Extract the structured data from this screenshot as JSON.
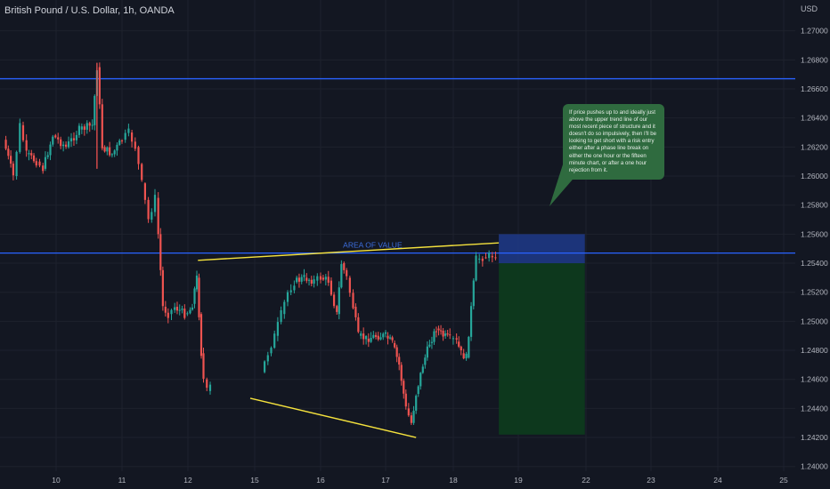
{
  "header": {
    "symbol_title": "British Pound / U.S. Dollar, 1h, OANDA",
    "currency": "USD"
  },
  "annotations": {
    "area_of_value": "AREA OF VALUE",
    "callout_text": "If price pushes up to and ideally just above the upper trend line of our most recent piece of structure and it doesn't do so impulsively, then I'll be looking to get short with a risk entry either after a phase line break on either the one hour or the fifteen minute chart, or after a one hour rejection from it."
  },
  "colors": {
    "background": "#131722",
    "grid": "#1e222d",
    "up_candle": "#26a69a",
    "down_candle": "#ef5350",
    "horizontal_line": "#2962ff",
    "trend_line": "#f5e23d",
    "stop_zone": "#1e3a8a",
    "target_zone": "#0d3a1e",
    "callout_bg": "#2f6b3f"
  },
  "chart_data": {
    "type": "candlestick",
    "title": "British Pound / U.S. Dollar, 1h, OANDA",
    "ylabel": "USD",
    "ylim": [
      1.2398,
      1.272
    ],
    "grid": true,
    "x_ticks": [
      "10",
      "11",
      "12",
      "15",
      "16",
      "17",
      "18",
      "19",
      "22",
      "23",
      "24",
      "25"
    ],
    "y_ticks": [
      "1.27000",
      "1.26800",
      "1.26600",
      "1.26400",
      "1.26200",
      "1.26000",
      "1.25800",
      "1.25600",
      "1.25400",
      "1.25200",
      "1.25000",
      "1.24800",
      "1.24600",
      "1.24400",
      "1.24200",
      "1.24000"
    ],
    "horizontal_levels": [
      1.2667,
      1.2547
    ],
    "area_of_value_level": 1.2547,
    "trend_lines": [
      {
        "x1": 12.45,
        "y1": 1.2542,
        "x2": 18.7,
        "y2": 1.2554
      },
      {
        "x1": 14.8,
        "y1": 1.2447,
        "x2": 17.45,
        "y2": 1.242
      }
    ],
    "position": {
      "side": "short",
      "x_start": 18.7,
      "x_end": 21.95,
      "entry": 1.254,
      "stop": 1.256,
      "target": 1.2422
    },
    "price_path": [
      {
        "x": 9.2,
        "close": 1.2625
      },
      {
        "x": 9.35,
        "close": 1.26
      },
      {
        "x": 9.45,
        "close": 1.2635
      },
      {
        "x": 9.55,
        "close": 1.2615
      },
      {
        "x": 9.7,
        "close": 1.261
      },
      {
        "x": 9.8,
        "close": 1.2605
      },
      {
        "x": 9.95,
        "close": 1.2628
      },
      {
        "x": 10.15,
        "close": 1.262
      },
      {
        "x": 10.35,
        "close": 1.2632
      },
      {
        "x": 10.55,
        "close": 1.2635
      },
      {
        "x": 10.62,
        "close": 1.2675
      },
      {
        "x": 10.7,
        "close": 1.262
      },
      {
        "x": 10.85,
        "close": 1.2615
      },
      {
        "x": 11.0,
        "close": 1.2625
      },
      {
        "x": 11.1,
        "close": 1.263
      },
      {
        "x": 11.2,
        "close": 1.262
      },
      {
        "x": 11.3,
        "close": 1.2595
      },
      {
        "x": 11.4,
        "close": 1.257
      },
      {
        "x": 11.5,
        "close": 1.2585
      },
      {
        "x": 11.55,
        "close": 1.256
      },
      {
        "x": 11.62,
        "close": 1.251
      },
      {
        "x": 11.7,
        "close": 1.2505
      },
      {
        "x": 11.8,
        "close": 1.251
      },
      {
        "x": 11.95,
        "close": 1.2505
      },
      {
        "x": 12.1,
        "close": 1.2508
      },
      {
        "x": 12.2,
        "close": 1.2512
      },
      {
        "x": 12.3,
        "close": 1.2522
      },
      {
        "x": 12.4,
        "close": 1.253
      },
      {
        "x": 12.5,
        "close": 1.2505
      },
      {
        "x": 12.6,
        "close": 1.2478
      },
      {
        "x": 12.7,
        "close": 1.246
      },
      {
        "x": 12.85,
        "close": 1.2452
      },
      {
        "x": 13.0,
        "close": 1.2455
      },
      {
        "x": 15.1,
        "close": 1.2465
      },
      {
        "x": 15.2,
        "close": 1.2478
      },
      {
        "x": 15.3,
        "close": 1.249
      },
      {
        "x": 15.4,
        "close": 1.2505
      },
      {
        "x": 15.5,
        "close": 1.252
      },
      {
        "x": 15.6,
        "close": 1.2527
      },
      {
        "x": 15.75,
        "close": 1.253
      },
      {
        "x": 15.9,
        "close": 1.2528
      },
      {
        "x": 16.0,
        "close": 1.253
      },
      {
        "x": 16.12,
        "close": 1.2528
      },
      {
        "x": 16.25,
        "close": 1.2505
      },
      {
        "x": 16.32,
        "close": 1.254
      },
      {
        "x": 16.4,
        "close": 1.253
      },
      {
        "x": 16.5,
        "close": 1.251
      },
      {
        "x": 16.58,
        "close": 1.249
      },
      {
        "x": 16.7,
        "close": 1.2488
      },
      {
        "x": 16.85,
        "close": 1.249
      },
      {
        "x": 17.0,
        "close": 1.249
      },
      {
        "x": 17.1,
        "close": 1.2485
      },
      {
        "x": 17.2,
        "close": 1.247
      },
      {
        "x": 17.3,
        "close": 1.244
      },
      {
        "x": 17.38,
        "close": 1.243
      },
      {
        "x": 17.45,
        "close": 1.245
      },
      {
        "x": 17.55,
        "close": 1.247
      },
      {
        "x": 17.65,
        "close": 1.2485
      },
      {
        "x": 17.75,
        "close": 1.2495
      },
      {
        "x": 17.85,
        "close": 1.249
      },
      {
        "x": 17.95,
        "close": 1.2488
      },
      {
        "x": 18.05,
        "close": 1.2486
      },
      {
        "x": 18.12,
        "close": 1.2478
      },
      {
        "x": 18.2,
        "close": 1.2475
      },
      {
        "x": 18.35,
        "close": 1.2543
      },
      {
        "x": 18.45,
        "close": 1.2544
      },
      {
        "x": 18.55,
        "close": 1.2545
      },
      {
        "x": 18.65,
        "close": 1.2546
      }
    ]
  }
}
